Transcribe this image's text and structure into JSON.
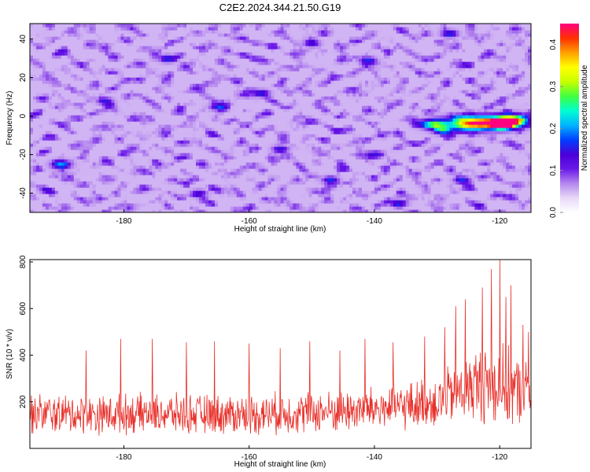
{
  "figure": {
    "title": "C2E2.2024.344.21.50.G19"
  },
  "colors": {
    "snr_line": "#e8302a",
    "scale": [
      "#ffffff",
      "#e8d8f8",
      "#b486ee",
      "#6a18e8",
      "#4a00d8",
      "#0040ff",
      "#00b4ff",
      "#00ffd0",
      "#40ff40",
      "#c8ff00",
      "#ffff00",
      "#ffa000",
      "#ff3000",
      "#ff0080"
    ]
  },
  "chart_data": [
    {
      "type": "heatmap",
      "title": "",
      "xlabel": "Height of straight line (km)",
      "ylabel": "Frequency (Hz)",
      "xlim": [
        -195,
        -115
      ],
      "ylim": [
        -50,
        48
      ],
      "xticks": [
        "-180",
        "-160",
        "-140",
        "-120"
      ],
      "yticks": [
        "-40",
        "-20",
        "0",
        "20",
        "40"
      ],
      "xtick_values": [
        -180,
        -160,
        -140,
        -120
      ],
      "ytick_values": [
        -40,
        -20,
        0,
        20,
        40
      ],
      "colorbar": {
        "label": "Normalized spectral amplitude",
        "range": [
          0.0,
          0.45
        ],
        "ticks": [
          "0.0",
          "0.1",
          "0.2",
          "0.3",
          "0.4"
        ],
        "tick_values": [
          0.0,
          0.1,
          0.2,
          0.3,
          0.4
        ]
      },
      "background_level": 0.05,
      "features": [
        {
          "x": -122.5,
          "y": -3,
          "sx": 3.5,
          "sy": 2.2,
          "amp": 0.35
        },
        {
          "x": -119.5,
          "y": -4,
          "sx": 1.2,
          "sy": 1.6,
          "amp": 0.45
        },
        {
          "x": -118,
          "y": -2,
          "sx": 1.5,
          "sy": 2.0,
          "amp": 0.28
        },
        {
          "x": -125,
          "y": -5,
          "sx": 2.0,
          "sy": 2.0,
          "amp": 0.14
        },
        {
          "x": -130.5,
          "y": -4,
          "sx": 1.3,
          "sy": 1.6,
          "amp": 0.22
        },
        {
          "x": -129,
          "y": -7,
          "sx": 1.0,
          "sy": 1.5,
          "amp": 0.14
        },
        {
          "x": -190,
          "y": -25,
          "sx": 1.0,
          "sy": 1.5,
          "amp": 0.14
        },
        {
          "x": -173,
          "y": 30,
          "sx": 0.8,
          "sy": 1.2,
          "amp": 0.13
        },
        {
          "x": -158,
          "y": 12,
          "sx": 0.8,
          "sy": 1.2,
          "amp": 0.12
        },
        {
          "x": -141,
          "y": 29,
          "sx": 0.8,
          "sy": 1.2,
          "amp": 0.12
        },
        {
          "x": -128,
          "y": 43,
          "sx": 0.8,
          "sy": 1.2,
          "amp": 0.13
        },
        {
          "x": -147,
          "y": -33,
          "sx": 0.8,
          "sy": 1.2,
          "amp": 0.12
        },
        {
          "x": -136,
          "y": -45,
          "sx": 0.8,
          "sy": 1.2,
          "amp": 0.11
        },
        {
          "x": -165,
          "y": 5,
          "sx": 0.8,
          "sy": 1.2,
          "amp": 0.11
        },
        {
          "x": -155,
          "y": -17,
          "sx": 0.8,
          "sy": 1.2,
          "amp": 0.11
        },
        {
          "x": -183,
          "y": 8,
          "sx": 0.8,
          "sy": 1.2,
          "amp": 0.1
        },
        {
          "x": -126,
          "y": -33,
          "sx": 0.8,
          "sy": 1.2,
          "amp": 0.12
        },
        {
          "x": -140,
          "y": -20,
          "sx": 0.8,
          "sy": 1.2,
          "amp": 0.1
        },
        {
          "x": -168,
          "y": -40,
          "sx": 0.8,
          "sy": 1.2,
          "amp": 0.1
        },
        {
          "x": -150,
          "y": 38,
          "sx": 0.8,
          "sy": 1.2,
          "amp": 0.1
        }
      ]
    },
    {
      "type": "line",
      "title": "",
      "xlabel": "Height of straight line (km)",
      "ylabel": "SNR (10 * v/v)",
      "xlim": [
        -195,
        -115
      ],
      "ylim": [
        0,
        810
      ],
      "xticks": [
        "-180",
        "-160",
        "-140",
        "-120"
      ],
      "yticks": [
        "200",
        "400",
        "600",
        "800"
      ],
      "xtick_values": [
        -180,
        -160,
        -140,
        -120
      ],
      "ytick_values": [
        200,
        400,
        600,
        800
      ],
      "series": [
        {
          "style": "noisy trace",
          "x_start": -195,
          "x_end": -115,
          "num_points": 1000,
          "envelope_x": [
            -195,
            -185,
            -175,
            -165,
            -155,
            -145,
            -140,
            -135,
            -130,
            -127,
            -124,
            -121,
            -120,
            -118,
            -116,
            -115
          ],
          "envelope_mean": [
            150,
            145,
            150,
            145,
            150,
            160,
            170,
            180,
            200,
            240,
            270,
            280,
            270,
            250,
            240,
            240
          ],
          "envelope_spread": [
            75,
            75,
            75,
            75,
            78,
            80,
            85,
            90,
            100,
            120,
            140,
            160,
            160,
            140,
            120,
            120
          ],
          "peaks": [
            {
              "x": -120.0,
              "y": 810
            },
            {
              "x": -121.3,
              "y": 770
            },
            {
              "x": -118.2,
              "y": 700
            },
            {
              "x": -122.8,
              "y": 690
            },
            {
              "x": -125.5,
              "y": 640
            },
            {
              "x": -127.0,
              "y": 610
            },
            {
              "x": -119.0,
              "y": 650
            },
            {
              "x": -116.3,
              "y": 530
            },
            {
              "x": -115.4,
              "y": 500
            },
            {
              "x": -128.8,
              "y": 520
            },
            {
              "x": -180.5,
              "y": 470
            },
            {
              "x": -175.5,
              "y": 470
            },
            {
              "x": -170.0,
              "y": 455
            },
            {
              "x": -165.5,
              "y": 460
            },
            {
              "x": -160.0,
              "y": 450
            },
            {
              "x": -150.3,
              "y": 460
            },
            {
              "x": -141.5,
              "y": 470
            },
            {
              "x": -137.0,
              "y": 455
            },
            {
              "x": -132.0,
              "y": 480
            },
            {
              "x": -186.0,
              "y": 420
            },
            {
              "x": -155.0,
              "y": 430
            },
            {
              "x": -145.5,
              "y": 420
            }
          ]
        }
      ]
    }
  ]
}
